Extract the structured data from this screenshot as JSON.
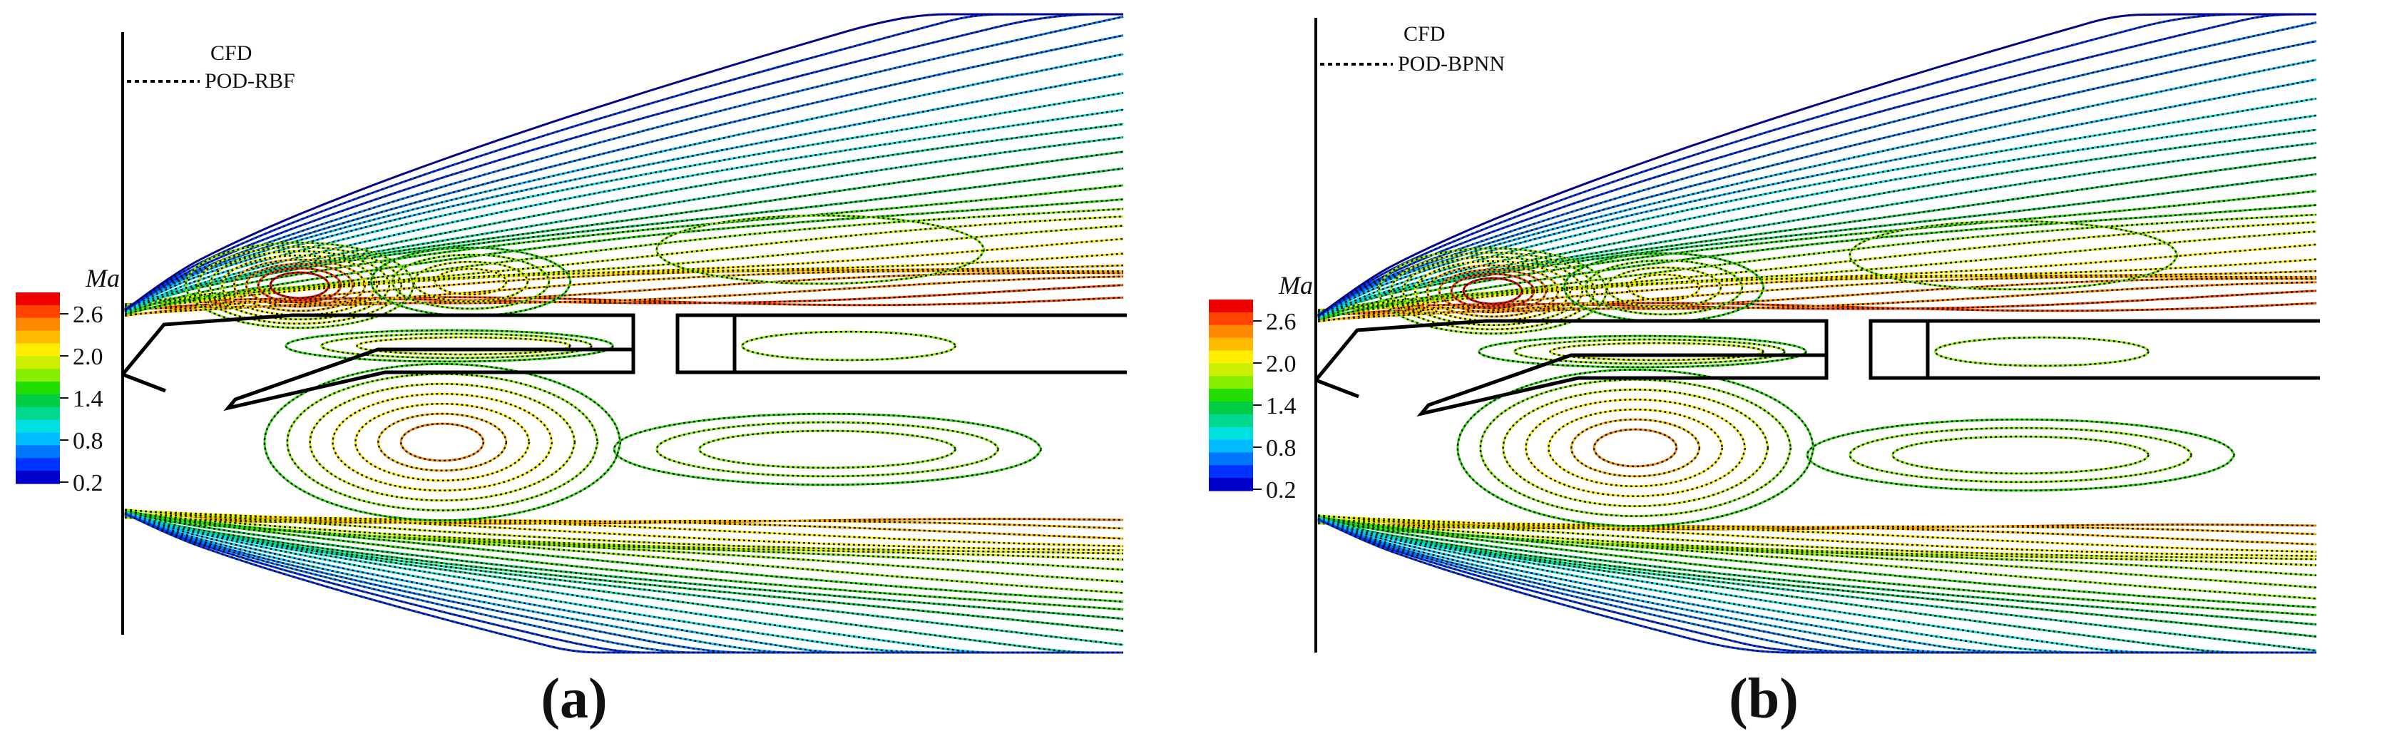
{
  "colorbar": {
    "title": "Ma",
    "ticks": [
      "2.6",
      "2.0",
      "1.4",
      "0.8",
      "0.2"
    ],
    "colors": [
      "#0000cc",
      "#0033ff",
      "#0077ff",
      "#00bbff",
      "#00e0e0",
      "#00d890",
      "#00cc44",
      "#22dd00",
      "#88ee00",
      "#ccee00",
      "#ffee00",
      "#ffbb00",
      "#ff8800",
      "#ff4400",
      "#ee0000"
    ]
  },
  "panels": [
    {
      "id": "a",
      "label_open": "(",
      "label_letter": "a",
      "label_close": ")",
      "legend": {
        "solid": "CFD",
        "dashed": "POD-RBF"
      }
    },
    {
      "id": "b",
      "label_open": "(",
      "label_letter": "b",
      "label_close": ")",
      "legend": {
        "solid": "CFD",
        "dashed": "POD-BPNN"
      }
    }
  ]
}
